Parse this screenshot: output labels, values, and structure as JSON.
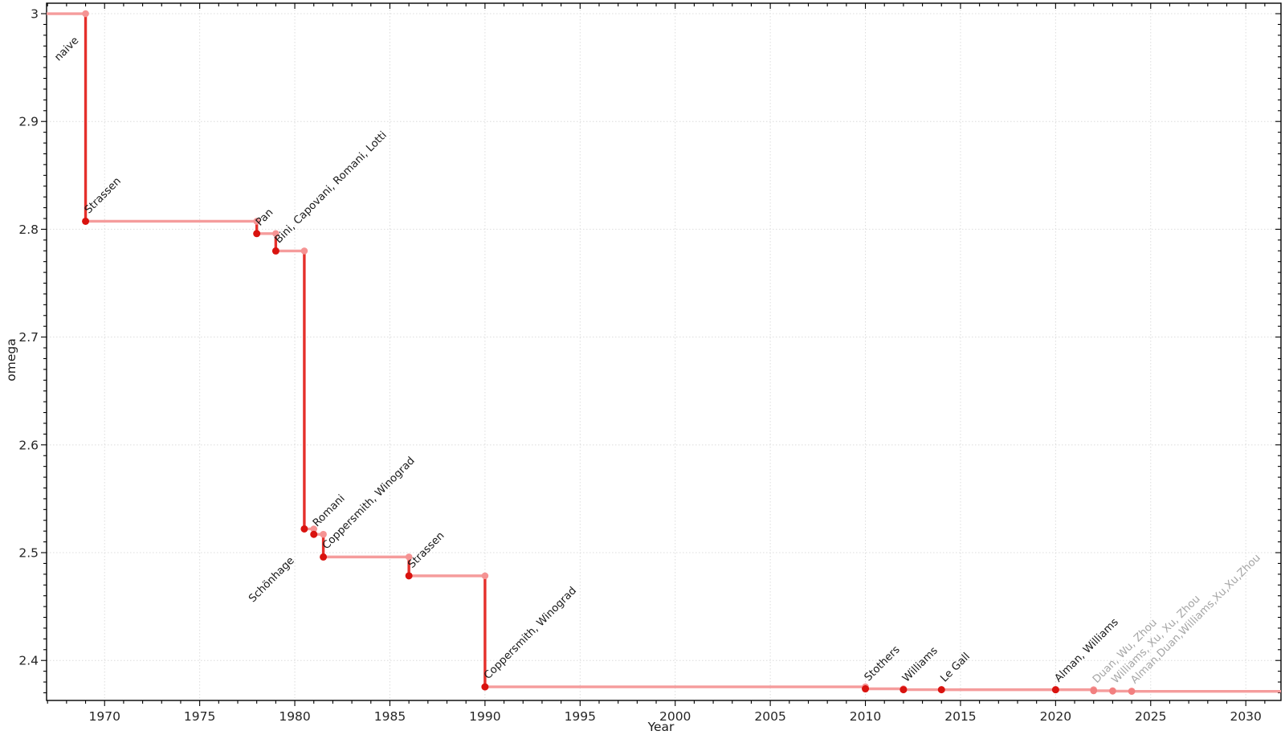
{
  "chart_data": {
    "type": "line",
    "step_style": "horizontal-plateaus-with-vertical-drops",
    "title": "",
    "xlabel": "Year",
    "ylabel": "omega",
    "xlim": [
      1966.95,
      2031.85
    ],
    "ylim": [
      2.3629,
      3.0097
    ],
    "x_major_ticks": [
      1970,
      1975,
      1980,
      1985,
      1990,
      1995,
      2000,
      2005,
      2010,
      2015,
      2020,
      2025,
      2030
    ],
    "x_minor_tick_step": 1,
    "y_major_ticks": [
      2.4,
      2.5,
      2.6,
      2.7,
      2.8,
      2.9,
      3.0
    ],
    "y_tick_labels": [
      "2.4",
      "2.5",
      "2.6",
      "2.7",
      "2.8",
      "2.9",
      "3"
    ],
    "y_minor_tick_step": 0.01,
    "grid": "dotted-at-major-ticks",
    "legend": "none",
    "start": {
      "omega": 3.0,
      "label": "naive",
      "label_placement": "below-left"
    },
    "points": [
      {
        "year": 1969,
        "omega": 2.8074,
        "label": "Strassen",
        "emphasis": "strong"
      },
      {
        "year": 1978,
        "omega": 2.796,
        "label": "Pan",
        "emphasis": "strong"
      },
      {
        "year": 1979,
        "omega": 2.7799,
        "label": "Bini, Capovani, Romani, Lotti",
        "emphasis": "strong"
      },
      {
        "year": 1980.5,
        "omega": 2.522,
        "label": "Schönhage",
        "emphasis": "strong",
        "label_placement": "below-left"
      },
      {
        "year": 1981,
        "omega": 2.517,
        "label": "Romani",
        "emphasis": "strong"
      },
      {
        "year": 1981.5,
        "omega": 2.496,
        "label": "Coppersmith, Winograd",
        "emphasis": "strong"
      },
      {
        "year": 1986,
        "omega": 2.4785,
        "label": "Strassen",
        "emphasis": "strong"
      },
      {
        "year": 1990,
        "omega": 2.3755,
        "label": "Coppersmith, Winograd",
        "emphasis": "strong"
      },
      {
        "year": 2010,
        "omega": 2.3737,
        "label": "Stothers",
        "emphasis": "strong"
      },
      {
        "year": 2012,
        "omega": 2.3729,
        "label": "Williams",
        "emphasis": "strong"
      },
      {
        "year": 2014,
        "omega": 2.3728639,
        "label": "Le Gall",
        "emphasis": "strong"
      },
      {
        "year": 2020,
        "omega": 2.3728596,
        "label": "Alman, Williams",
        "emphasis": "strong"
      },
      {
        "year": 2022,
        "omega": 2.37188,
        "label": "Duan, Wu, Zhou",
        "emphasis": "light"
      },
      {
        "year": 2023,
        "omega": 2.371552,
        "label": "Williams, Xu, Xu, Zhou",
        "emphasis": "light"
      },
      {
        "year": 2024,
        "omega": 2.371339,
        "label": "Alman,Duan,Williams,Xu,Xu,Zhou",
        "emphasis": "light"
      }
    ],
    "colors": {
      "background": "#ffffff",
      "step_horizontal": "#f59c9c",
      "step_vertical": "#e5302b",
      "point_strong": "#d9130f",
      "point_light": "#f28080",
      "corner_point": "#f59393",
      "label_strong": "#1a1a1a",
      "label_light": "#a6a6a6",
      "grid": "#dcdcdc",
      "axis": "#000000",
      "tick_label": "#262626"
    }
  }
}
